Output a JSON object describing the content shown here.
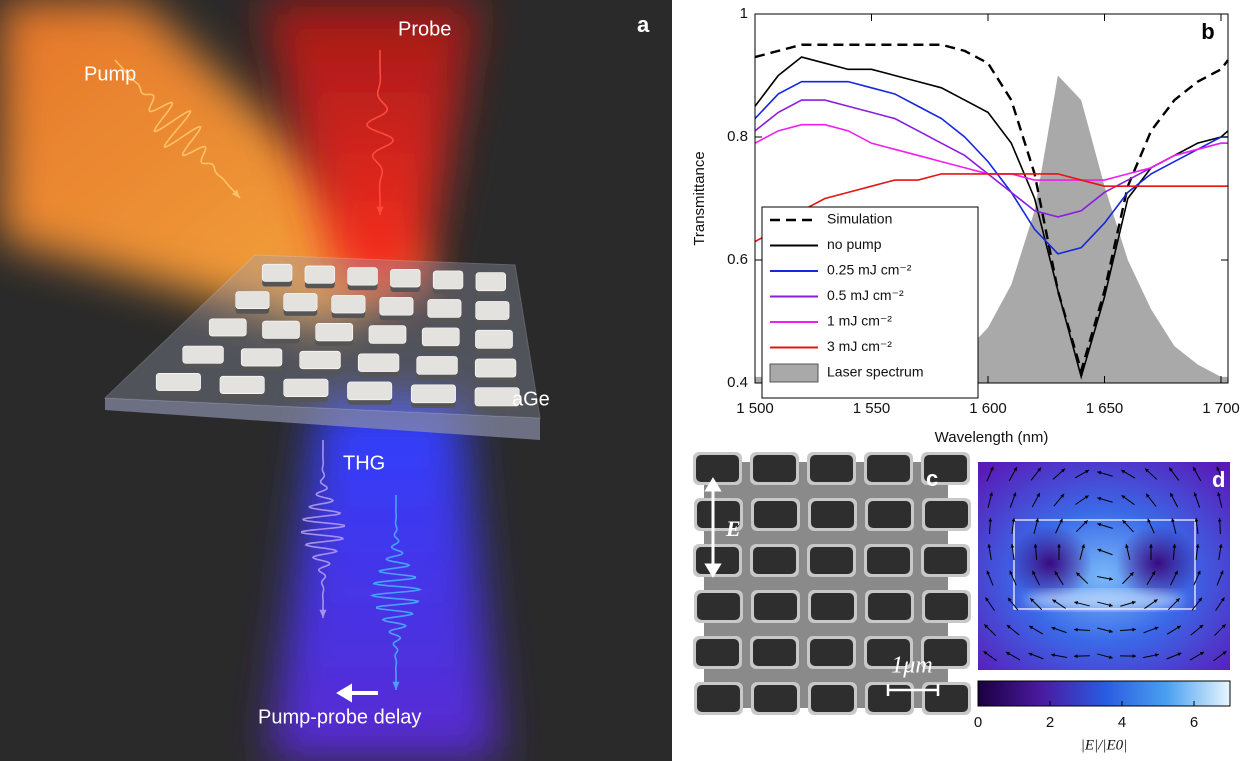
{
  "panel_a": {
    "label": "a",
    "pump": "Pump",
    "probe": "Probe",
    "material": "aGe",
    "thg": "THG",
    "delay": "Pump-probe delay"
  },
  "panel_c": {
    "label": "c",
    "field": "E",
    "scale": "1μm"
  },
  "panel_d": {
    "label": "d"
  },
  "chart_data": [
    {
      "type": "line",
      "panel_label": "b",
      "xlabel": "Wavelength (nm)",
      "ylabel": "Transmittance",
      "x": [
        1500,
        1510,
        1520,
        1530,
        1540,
        1550,
        1560,
        1570,
        1580,
        1590,
        1600,
        1610,
        1620,
        1630,
        1640,
        1650,
        1660,
        1670,
        1680,
        1690,
        1700,
        1703
      ],
      "xlim": [
        1500,
        1703
      ],
      "ylim": [
        0.4,
        1
      ],
      "xticks": [
        {
          "value": 1500,
          "label": "1 500"
        },
        {
          "value": 1550,
          "label": "1 550"
        },
        {
          "value": 1600,
          "label": "1 600"
        },
        {
          "value": 1650,
          "label": "1 650"
        },
        {
          "value": 1700,
          "label": "1 700"
        }
      ],
      "yticks": [
        0.4,
        0.6,
        0.8,
        1
      ],
      "series": [
        {
          "name": "Laser spectrum",
          "color": "#a9a9a9",
          "kind": "area",
          "values": [
            0.41,
            0.41,
            0.41,
            0.41,
            0.41,
            0.41,
            0.41,
            0.42,
            0.43,
            0.45,
            0.49,
            0.56,
            0.68,
            0.9,
            0.86,
            0.72,
            0.6,
            0.52,
            0.46,
            0.43,
            0.41,
            0.41
          ]
        },
        {
          "name": "Simulation",
          "color": "#000000",
          "kind": "dashed",
          "values": [
            0.93,
            0.94,
            0.95,
            0.95,
            0.95,
            0.95,
            0.95,
            0.95,
            0.95,
            0.94,
            0.92,
            0.86,
            0.74,
            0.55,
            0.42,
            0.55,
            0.72,
            0.81,
            0.86,
            0.89,
            0.91,
            0.925
          ]
        },
        {
          "name": "no pump",
          "color": "#000000",
          "kind": "line",
          "values": [
            0.85,
            0.9,
            0.93,
            0.92,
            0.91,
            0.91,
            0.9,
            0.89,
            0.88,
            0.86,
            0.84,
            0.79,
            0.7,
            0.55,
            0.41,
            0.54,
            0.7,
            0.75,
            0.77,
            0.79,
            0.8,
            0.81
          ]
        },
        {
          "name": "0.25 mJ cm⁻²",
          "color": "#1428e0",
          "kind": "line",
          "values": [
            0.83,
            0.87,
            0.89,
            0.89,
            0.89,
            0.88,
            0.87,
            0.85,
            0.83,
            0.8,
            0.76,
            0.71,
            0.65,
            0.61,
            0.62,
            0.66,
            0.71,
            0.74,
            0.76,
            0.78,
            0.8,
            0.8
          ]
        },
        {
          "name": "0.5 mJ cm⁻²",
          "color": "#8a1ee0",
          "kind": "line",
          "values": [
            0.81,
            0.84,
            0.86,
            0.86,
            0.85,
            0.84,
            0.83,
            0.81,
            0.79,
            0.77,
            0.74,
            0.71,
            0.68,
            0.67,
            0.68,
            0.71,
            0.73,
            0.75,
            0.77,
            0.78,
            0.79,
            0.79
          ]
        },
        {
          "name": "1 mJ cm⁻²",
          "color": "#f01ef0",
          "kind": "line",
          "values": [
            0.79,
            0.81,
            0.82,
            0.82,
            0.81,
            0.79,
            0.78,
            0.77,
            0.76,
            0.75,
            0.74,
            0.74,
            0.73,
            0.73,
            0.73,
            0.73,
            0.74,
            0.75,
            0.77,
            0.78,
            0.79,
            0.79
          ]
        },
        {
          "name": "3 mJ cm⁻²",
          "color": "#e61414",
          "kind": "line",
          "values": [
            0.63,
            0.65,
            0.68,
            0.7,
            0.71,
            0.72,
            0.73,
            0.73,
            0.74,
            0.74,
            0.74,
            0.74,
            0.74,
            0.74,
            0.73,
            0.72,
            0.72,
            0.72,
            0.72,
            0.72,
            0.72,
            0.72
          ]
        }
      ],
      "legend_order": [
        1,
        2,
        3,
        4,
        5,
        6,
        0
      ]
    },
    {
      "type": "colorbar",
      "xlabel": "|E|/|E0|",
      "xlim": [
        0,
        7
      ],
      "xticks": [
        0,
        2,
        4,
        6
      ]
    }
  ]
}
